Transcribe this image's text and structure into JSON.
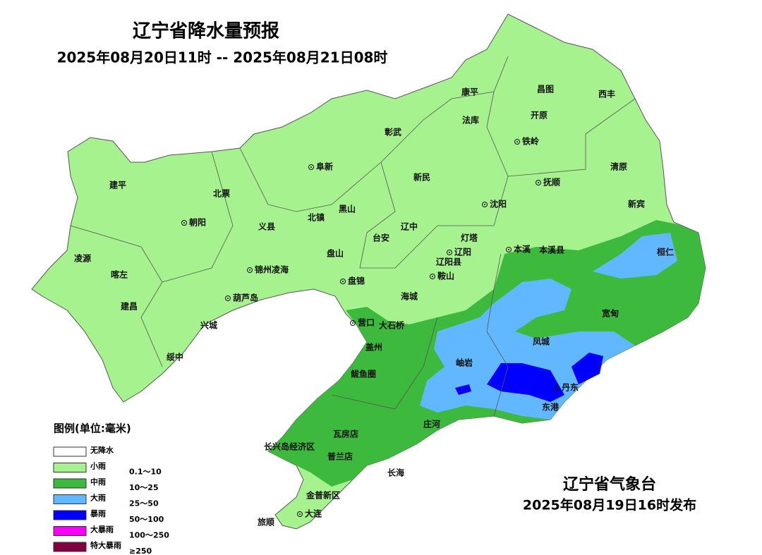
{
  "header": {
    "title": "辽宁省降水量预报",
    "period": "2025年08月20日11时 -- 2025年08月21日08时"
  },
  "legend": {
    "title": "图例(单位:毫米)",
    "items": [
      {
        "name": "无降水",
        "color": "#ffffff"
      },
      {
        "name": "小雨",
        "range": "0.1～10",
        "color": "#a6f28f"
      },
      {
        "name": "中雨",
        "range": "10～25",
        "color": "#3dba3d"
      },
      {
        "name": "大雨",
        "range": "25～50",
        "color": "#61b8ff"
      },
      {
        "name": "暴雨",
        "range": "50～100",
        "color": "#0000fe"
      },
      {
        "name": "大暴雨",
        "range": "100～250",
        "color": "#fa00fa"
      },
      {
        "name": "特大暴雨",
        "range": "≥250",
        "color": "#800040"
      }
    ]
  },
  "places": [
    "康平",
    "昌图",
    "西丰",
    "法库",
    "开原",
    "彰武",
    "铁岭",
    "阜新",
    "清原",
    "新民",
    "建平",
    "北票",
    "抚顺",
    "黑山",
    "沈阳",
    "新宾",
    "朝阳",
    "义县",
    "北镇",
    "辽中",
    "台安",
    "灯塔",
    "本溪",
    "本溪县",
    "桓仁",
    "辽阳",
    "凌源",
    "盘山",
    "锦州凌海",
    "辽阳县",
    "喀左",
    "盘锦",
    "鞍山",
    "葫芦岛",
    "海城",
    "宽甸",
    "建昌",
    "营口",
    "大石桥",
    "兴城",
    "凤城",
    "盖州",
    "绥中",
    "岫岩",
    "鲅鱼圈",
    "丹东",
    "东港",
    "庄河",
    "瓦房店",
    "长兴岛经济区",
    "普兰店",
    "长海",
    "金普新区",
    "大连",
    "旅顺"
  ],
  "footer": {
    "issuer": "辽宁省气象台",
    "issued": "2025年08月19日16时发布"
  }
}
